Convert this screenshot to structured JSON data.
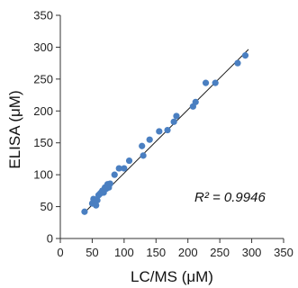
{
  "chart_data": {
    "type": "scatter",
    "title": "",
    "xlabel": "LC/MS (μM)",
    "ylabel": "ELISA (μM)",
    "xlim": [
      0,
      350
    ],
    "ylim": [
      0,
      350
    ],
    "xticks": [
      "0",
      "50",
      "100",
      "150",
      "200",
      "250",
      "300",
      "350"
    ],
    "yticks": [
      "0",
      "50",
      "100",
      "150",
      "200",
      "250",
      "300",
      "350"
    ],
    "grid": false,
    "legend": "none",
    "point_color": "#4a7fc1",
    "line_color": "#1a1a1a",
    "annotation": "R² = 0.9946",
    "points": [
      [
        38,
        42
      ],
      [
        50,
        55
      ],
      [
        52,
        62
      ],
      [
        55,
        58
      ],
      [
        56,
        52
      ],
      [
        58,
        60
      ],
      [
        60,
        68
      ],
      [
        62,
        70
      ],
      [
        64,
        72
      ],
      [
        66,
        75
      ],
      [
        68,
        72
      ],
      [
        70,
        80
      ],
      [
        72,
        78
      ],
      [
        74,
        85
      ],
      [
        76,
        80
      ],
      [
        78,
        86
      ],
      [
        85,
        100
      ],
      [
        92,
        110
      ],
      [
        100,
        110
      ],
      [
        108,
        122
      ],
      [
        128,
        145
      ],
      [
        130,
        130
      ],
      [
        140,
        155
      ],
      [
        155,
        168
      ],
      [
        168,
        170
      ],
      [
        178,
        183
      ],
      [
        182,
        192
      ],
      [
        208,
        207
      ],
      [
        212,
        214
      ],
      [
        228,
        244
      ],
      [
        243,
        244
      ],
      [
        278,
        275
      ],
      [
        290,
        287
      ]
    ],
    "trendline": {
      "slope": 0.995,
      "intercept": 3
    }
  }
}
